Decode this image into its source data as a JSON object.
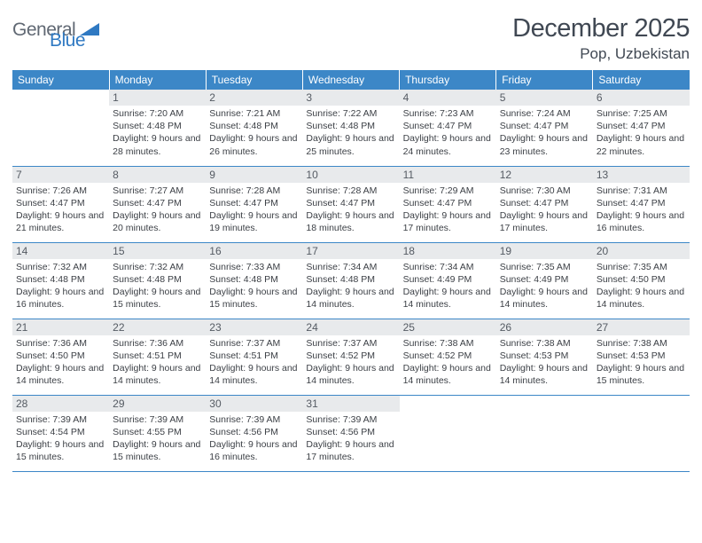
{
  "logo": {
    "text1": "General",
    "text2": "Blue",
    "color1": "#606873",
    "color2": "#2f79c2"
  },
  "title": "December 2025",
  "location": "Pop, Uzbekistan",
  "header_bg": "#3c87c7",
  "daynum_bg": "#e8eaec",
  "border_color": "#3c87c7",
  "weekdays": [
    "Sunday",
    "Monday",
    "Tuesday",
    "Wednesday",
    "Thursday",
    "Friday",
    "Saturday"
  ],
  "weeks": [
    [
      null,
      {
        "n": "1",
        "sr": "7:20 AM",
        "ss": "4:48 PM",
        "dl": "9 hours and 28 minutes."
      },
      {
        "n": "2",
        "sr": "7:21 AM",
        "ss": "4:48 PM",
        "dl": "9 hours and 26 minutes."
      },
      {
        "n": "3",
        "sr": "7:22 AM",
        "ss": "4:48 PM",
        "dl": "9 hours and 25 minutes."
      },
      {
        "n": "4",
        "sr": "7:23 AM",
        "ss": "4:47 PM",
        "dl": "9 hours and 24 minutes."
      },
      {
        "n": "5",
        "sr": "7:24 AM",
        "ss": "4:47 PM",
        "dl": "9 hours and 23 minutes."
      },
      {
        "n": "6",
        "sr": "7:25 AM",
        "ss": "4:47 PM",
        "dl": "9 hours and 22 minutes."
      }
    ],
    [
      {
        "n": "7",
        "sr": "7:26 AM",
        "ss": "4:47 PM",
        "dl": "9 hours and 21 minutes."
      },
      {
        "n": "8",
        "sr": "7:27 AM",
        "ss": "4:47 PM",
        "dl": "9 hours and 20 minutes."
      },
      {
        "n": "9",
        "sr": "7:28 AM",
        "ss": "4:47 PM",
        "dl": "9 hours and 19 minutes."
      },
      {
        "n": "10",
        "sr": "7:28 AM",
        "ss": "4:47 PM",
        "dl": "9 hours and 18 minutes."
      },
      {
        "n": "11",
        "sr": "7:29 AM",
        "ss": "4:47 PM",
        "dl": "9 hours and 17 minutes."
      },
      {
        "n": "12",
        "sr": "7:30 AM",
        "ss": "4:47 PM",
        "dl": "9 hours and 17 minutes."
      },
      {
        "n": "13",
        "sr": "7:31 AM",
        "ss": "4:47 PM",
        "dl": "9 hours and 16 minutes."
      }
    ],
    [
      {
        "n": "14",
        "sr": "7:32 AM",
        "ss": "4:48 PM",
        "dl": "9 hours and 16 minutes."
      },
      {
        "n": "15",
        "sr": "7:32 AM",
        "ss": "4:48 PM",
        "dl": "9 hours and 15 minutes."
      },
      {
        "n": "16",
        "sr": "7:33 AM",
        "ss": "4:48 PM",
        "dl": "9 hours and 15 minutes."
      },
      {
        "n": "17",
        "sr": "7:34 AM",
        "ss": "4:48 PM",
        "dl": "9 hours and 14 minutes."
      },
      {
        "n": "18",
        "sr": "7:34 AM",
        "ss": "4:49 PM",
        "dl": "9 hours and 14 minutes."
      },
      {
        "n": "19",
        "sr": "7:35 AM",
        "ss": "4:49 PM",
        "dl": "9 hours and 14 minutes."
      },
      {
        "n": "20",
        "sr": "7:35 AM",
        "ss": "4:50 PM",
        "dl": "9 hours and 14 minutes."
      }
    ],
    [
      {
        "n": "21",
        "sr": "7:36 AM",
        "ss": "4:50 PM",
        "dl": "9 hours and 14 minutes."
      },
      {
        "n": "22",
        "sr": "7:36 AM",
        "ss": "4:51 PM",
        "dl": "9 hours and 14 minutes."
      },
      {
        "n": "23",
        "sr": "7:37 AM",
        "ss": "4:51 PM",
        "dl": "9 hours and 14 minutes."
      },
      {
        "n": "24",
        "sr": "7:37 AM",
        "ss": "4:52 PM",
        "dl": "9 hours and 14 minutes."
      },
      {
        "n": "25",
        "sr": "7:38 AM",
        "ss": "4:52 PM",
        "dl": "9 hours and 14 minutes."
      },
      {
        "n": "26",
        "sr": "7:38 AM",
        "ss": "4:53 PM",
        "dl": "9 hours and 14 minutes."
      },
      {
        "n": "27",
        "sr": "7:38 AM",
        "ss": "4:53 PM",
        "dl": "9 hours and 15 minutes."
      }
    ],
    [
      {
        "n": "28",
        "sr": "7:39 AM",
        "ss": "4:54 PM",
        "dl": "9 hours and 15 minutes."
      },
      {
        "n": "29",
        "sr": "7:39 AM",
        "ss": "4:55 PM",
        "dl": "9 hours and 15 minutes."
      },
      {
        "n": "30",
        "sr": "7:39 AM",
        "ss": "4:56 PM",
        "dl": "9 hours and 16 minutes."
      },
      {
        "n": "31",
        "sr": "7:39 AM",
        "ss": "4:56 PM",
        "dl": "9 hours and 17 minutes."
      },
      null,
      null,
      null
    ]
  ],
  "labels": {
    "sunrise": "Sunrise:",
    "sunset": "Sunset:",
    "daylight": "Daylight:"
  }
}
